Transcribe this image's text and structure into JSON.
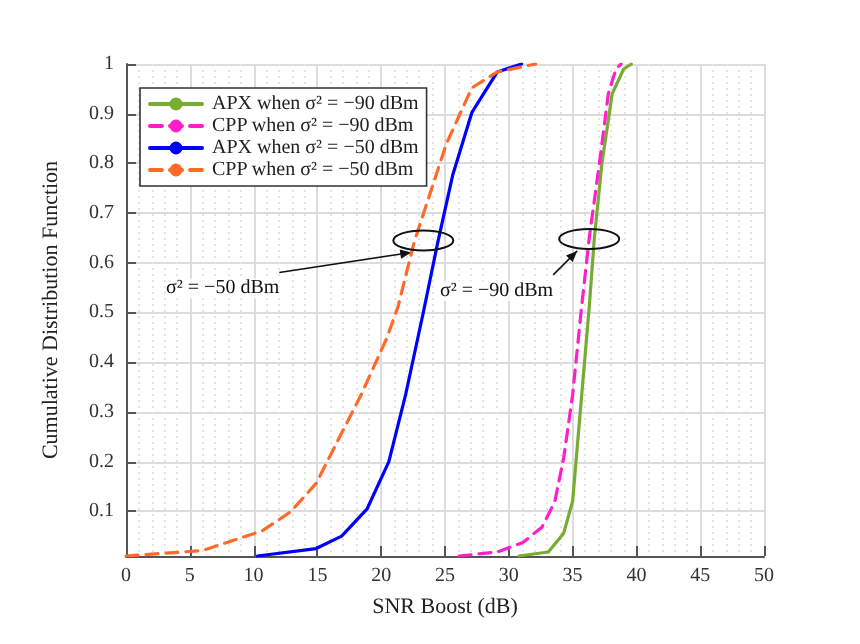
{
  "chart_data": {
    "type": "line",
    "xlabel": "SNR Boost (dB)",
    "ylabel": "Cumulative Distribution Function",
    "xlim": [
      0,
      50
    ],
    "xticks": [
      0,
      5,
      10,
      15,
      20,
      25,
      30,
      35,
      40,
      45,
      50
    ],
    "ylim": [
      0.01,
      1
    ],
    "yticks": [
      0.1,
      0.2,
      0.3,
      0.4,
      0.5,
      0.6,
      0.7,
      0.8,
      0.9,
      1
    ],
    "grid": true,
    "legend": "top left",
    "marker": "none",
    "series": [
      {
        "name": "APX when σ² = −90 dBm",
        "color": "#77ac30",
        "line_style": "solid",
        "x": [
          30.8,
          33.1,
          34.3,
          35.0,
          35.3,
          35.8,
          36.3,
          36.7,
          37.3,
          38.1,
          39.0,
          39.6
        ],
        "values": [
          0.01,
          0.018,
          0.056,
          0.12,
          0.21,
          0.36,
          0.51,
          0.649,
          0.8,
          0.94,
          0.99,
          1
        ]
      },
      {
        "name": "CPP when σ² = −90 dBm",
        "color": "#ff1fc8",
        "line_style": "dashed",
        "x": [
          26.1,
          29.1,
          31.1,
          32.6,
          33.6,
          34.3,
          35.0,
          35.7,
          36.3,
          37.1,
          37.8,
          38.4,
          38.8
        ],
        "values": [
          0.01,
          0.018,
          0.037,
          0.068,
          0.119,
          0.207,
          0.334,
          0.51,
          0.649,
          0.8,
          0.94,
          0.99,
          1
        ]
      },
      {
        "name": "APX when σ² = −50 dBm",
        "color": "#0000ff",
        "line_style": "solid",
        "x": [
          10.3,
          14.9,
          16.9,
          18.9,
          20.6,
          21.9,
          23.3,
          24.4,
          25.6,
          27.1,
          29.1,
          31
        ],
        "values": [
          0.01,
          0.025,
          0.05,
          0.105,
          0.2,
          0.333,
          0.5,
          0.637,
          0.776,
          0.902,
          0.984,
          1
        ]
      },
      {
        "name": "CPP when σ² = −50 dBm",
        "color": "#ff6929",
        "line_style": "dashed",
        "x": [
          0,
          6,
          10.7,
          12.9,
          14.9,
          16.4,
          18.4,
          20.4,
          21.3,
          22.6,
          25.1,
          27.1,
          29.1,
          32.1
        ],
        "values": [
          0.01,
          0.021,
          0.061,
          0.099,
          0.156,
          0.232,
          0.333,
          0.446,
          0.51,
          0.643,
          0.839,
          0.952,
          0.984,
          1
        ]
      }
    ],
    "annotations": [
      {
        "text": "σ² = −50 dBm",
        "x": 23.3,
        "y": 0.645
      },
      {
        "text": "σ² = −90 dBm",
        "x": 36.3,
        "y": 0.648
      }
    ]
  }
}
